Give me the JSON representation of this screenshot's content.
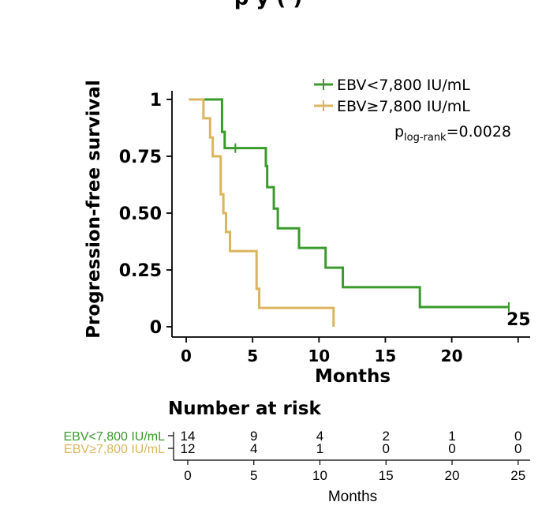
{
  "top_title_fragment": "p       y (  )",
  "chart_data": {
    "type": "line",
    "step": true,
    "ylabel": "Progression-free survival",
    "xlabel": "Months",
    "xlim": [
      -1,
      26
    ],
    "ylim": [
      0,
      1
    ],
    "x_ticks": [
      0,
      5,
      10,
      15,
      20,
      25
    ],
    "y_ticks": [
      0,
      0.25,
      0.5,
      0.75,
      1
    ],
    "y_tick_labels": [
      "0",
      "0.25",
      "0.50",
      "0.75",
      "1"
    ],
    "x_tick_labels": [
      "0",
      "5",
      "10",
      "15",
      "20"
    ],
    "extra_x_label": "25",
    "legend_position": "top-right",
    "series": [
      {
        "name": "EBV<7,800 IU/mL",
        "color": "#3a9a2c",
        "start_x": 1.3,
        "end_x": 24.3,
        "drops": [
          [
            2.7,
            0.857
          ],
          [
            2.9,
            0.786
          ],
          [
            6.0,
            0.707
          ],
          [
            6.1,
            0.614
          ],
          [
            6.6,
            0.52
          ],
          [
            6.9,
            0.433
          ],
          [
            8.5,
            0.347
          ],
          [
            10.5,
            0.26
          ],
          [
            11.8,
            0.174
          ],
          [
            17.6,
            0.087
          ]
        ],
        "censors": [
          [
            3.7,
            0.786
          ],
          [
            24.3,
            0.087
          ]
        ]
      },
      {
        "name": "EBV≥7,800 IU/mL",
        "color": "#dbb55e",
        "start_x": 0.2,
        "end_x": 11.1,
        "drops": [
          [
            1.3,
            0.917
          ],
          [
            1.8,
            0.833
          ],
          [
            2.0,
            0.75
          ],
          [
            2.6,
            0.583
          ],
          [
            2.8,
            0.5
          ],
          [
            3.0,
            0.417
          ],
          [
            3.3,
            0.333
          ],
          [
            5.3,
            0.167
          ],
          [
            5.5,
            0.083
          ],
          [
            11.1,
            0.0
          ]
        ],
        "censors": []
      }
    ],
    "annotation": {
      "p_base": "p",
      "p_sub": "log-rank",
      "p_value": "=0.0028"
    }
  },
  "risk_table": {
    "title": "Number at risk",
    "xlabel": "Months",
    "x_ticks": [
      0,
      5,
      10,
      15,
      20,
      25
    ],
    "x_tick_labels": [
      "0",
      "5",
      "10",
      "15",
      "20",
      "25"
    ],
    "rows": [
      {
        "label": "EBV<7,800 IU/mL",
        "color": "#3a9a2c",
        "values": [
          "14",
          "9",
          "4",
          "2",
          "1",
          "0"
        ]
      },
      {
        "label": "EBV≥7,800 IU/mL",
        "color": "#dbb55e",
        "values": [
          "12",
          "4",
          "1",
          "0",
          "0",
          "0"
        ]
      }
    ]
  }
}
